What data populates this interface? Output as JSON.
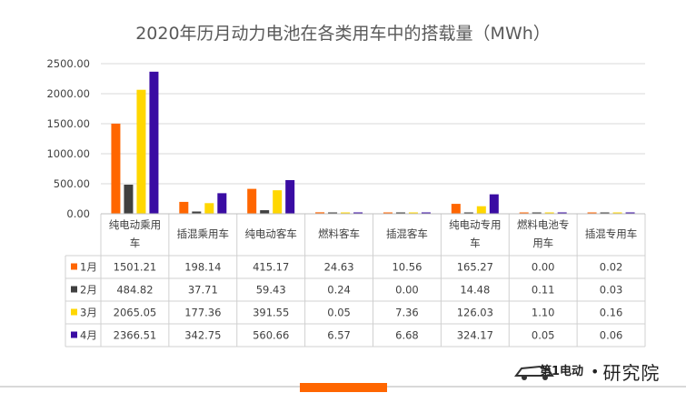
{
  "chart_data": {
    "type": "bar",
    "title": "2020年历月动力电池在各类用车中的搭载量（MWh）",
    "categories": [
      [
        "纯电动乘用",
        "车"
      ],
      [
        "插混乘用车"
      ],
      [
        "纯电动客车"
      ],
      [
        "燃料客车"
      ],
      [
        "插混客车"
      ],
      [
        "纯电动专用",
        "车"
      ],
      [
        "燃料电池专",
        "用车"
      ],
      [
        "插混专用车"
      ]
    ],
    "series": [
      {
        "name": "1月",
        "color": "#ff6600",
        "values": [
          1501.21,
          198.14,
          415.17,
          24.63,
          10.56,
          165.27,
          0.0,
          0.02
        ],
        "labels": [
          "1501.21",
          "198.14",
          "415.17",
          "24.63",
          "10.56",
          "165.27",
          "0.00",
          "0.02"
        ]
      },
      {
        "name": "2月",
        "color": "#404040",
        "values": [
          484.82,
          37.71,
          59.43,
          0.24,
          0.0,
          14.48,
          0.11,
          0.03
        ],
        "labels": [
          "484.82",
          "37.71",
          "59.43",
          "0.24",
          "0.00",
          "14.48",
          "0.11",
          "0.03"
        ]
      },
      {
        "name": "3月",
        "color": "#ffd700",
        "values": [
          2065.05,
          177.36,
          391.55,
          0.05,
          7.36,
          126.03,
          1.1,
          0.16
        ],
        "labels": [
          "2065.05",
          "177.36",
          "391.55",
          "0.05",
          "7.36",
          "126.03",
          "1.10",
          "0.16"
        ]
      },
      {
        "name": "4月",
        "color": "#3a0ca3",
        "values": [
          2366.51,
          342.75,
          560.66,
          6.57,
          6.68,
          324.17,
          0.05,
          0.06
        ],
        "labels": [
          "2366.51",
          "342.75",
          "560.66",
          "6.57",
          "6.68",
          "324.17",
          "0.05",
          "0.06"
        ]
      }
    ],
    "y_ticks": [
      "0.00",
      "500.00",
      "1000.00",
      "1500.00",
      "2000.00",
      "2500.00"
    ],
    "ylim": [
      0,
      2500
    ],
    "grid": true,
    "legend": "data-table"
  },
  "brand": {
    "logo_text": "第1电动",
    "name": "研究院",
    "accent": "#ff6600"
  }
}
